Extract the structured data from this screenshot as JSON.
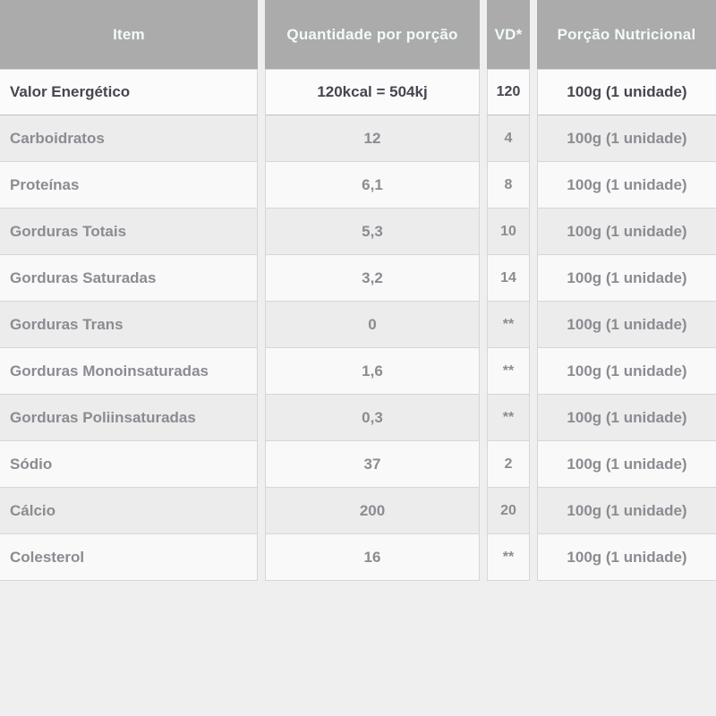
{
  "table": {
    "columns": [
      {
        "key": "item",
        "label": "Item"
      },
      {
        "key": "quantity",
        "label": "Quantidade por porção"
      },
      {
        "key": "vd",
        "label": "VD*"
      },
      {
        "key": "portion",
        "label": "Porção Nutricional"
      }
    ],
    "rows": [
      {
        "item": "Valor Energético",
        "quantity": "120kcal = 504kj",
        "vd": "120",
        "portion": "100g (1 unidade)",
        "emphasis": true
      },
      {
        "item": "Carboidratos",
        "quantity": "12",
        "vd": "4",
        "portion": "100g (1 unidade)",
        "emphasis": false
      },
      {
        "item": "Proteínas",
        "quantity": "6,1",
        "vd": "8",
        "portion": "100g (1 unidade)",
        "emphasis": false
      },
      {
        "item": "Gorduras Totais",
        "quantity": "5,3",
        "vd": "10",
        "portion": "100g (1 unidade)",
        "emphasis": false
      },
      {
        "item": "Gorduras Saturadas",
        "quantity": "3,2",
        "vd": "14",
        "portion": "100g (1 unidade)",
        "emphasis": false
      },
      {
        "item": "Gorduras Trans",
        "quantity": "0",
        "vd": "**",
        "portion": "100g (1 unidade)",
        "emphasis": false
      },
      {
        "item": "Gorduras Monoinsaturadas",
        "quantity": "1,6",
        "vd": "**",
        "portion": "100g (1 unidade)",
        "emphasis": false
      },
      {
        "item": "Gorduras Poliinsaturadas",
        "quantity": "0,3",
        "vd": "**",
        "portion": "100g (1 unidade)",
        "emphasis": false
      },
      {
        "item": "Sódio",
        "quantity": "37",
        "vd": "2",
        "portion": "100g (1 unidade)",
        "emphasis": false
      },
      {
        "item": "Cálcio",
        "quantity": "200",
        "vd": "20",
        "portion": "100g (1 unidade)",
        "emphasis": false
      },
      {
        "item": "Colesterol",
        "quantity": "16",
        "vd": "**",
        "portion": "100g (1 unidade)",
        "emphasis": false
      }
    ]
  },
  "colors": {
    "page_background": "#efefef",
    "header_background": "#ababab",
    "header_text": "#f2fbf9",
    "row_light": "#f9f9f9",
    "row_dark": "#ececec",
    "cell_border": "#d6d6d6",
    "body_text": "#8b8b92",
    "emphasis_text": "#46464f"
  }
}
